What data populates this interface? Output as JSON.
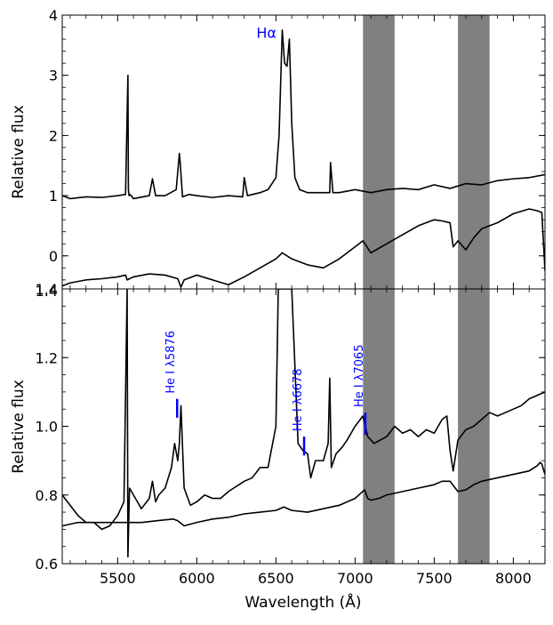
{
  "figure": {
    "xlabel": "Wavelength (Å)",
    "panels": [
      {
        "id": "top",
        "ylabel": "Relative flux",
        "xlim": [
          5150,
          8200
        ],
        "ylim": [
          -0.55,
          4.0
        ],
        "yticks": [
          0,
          1,
          2,
          3,
          4
        ],
        "ytick_labels": [
          "0",
          "1",
          "2",
          "3",
          "4"
        ],
        "annotations": [
          {
            "text": "Hα",
            "x": 6440,
            "y": 3.62,
            "color": "#0000ff"
          }
        ]
      },
      {
        "id": "bottom",
        "ylabel": "Relative flux",
        "xlim": [
          5150,
          8200
        ],
        "ylim": [
          0.6,
          1.4
        ],
        "yticks": [
          0.6,
          0.8,
          1.0,
          1.2,
          1.4
        ],
        "ytick_labels": [
          "0.6",
          "0.8",
          "1.0",
          "1.2",
          "1.4"
        ],
        "overlap_tick_label": "1.4",
        "lines": [
          {
            "label": "He I λ5876",
            "x": 5876,
            "y0": 1.025,
            "y1": 1.08
          },
          {
            "label": "He I λ6678",
            "x": 6678,
            "y0": 0.915,
            "y1": 0.97
          },
          {
            "label": "He I λ7065",
            "x": 7065,
            "y0": 0.975,
            "y1": 1.04
          }
        ]
      }
    ],
    "xticks": [
      5500,
      6000,
      6500,
      7000,
      7500,
      8000
    ],
    "xtick_labels": [
      "5500",
      "6000",
      "6500",
      "7000",
      "7500",
      "8000"
    ],
    "shaded_bands": [
      [
        7050,
        7250
      ],
      [
        7650,
        7850
      ]
    ],
    "colors": {
      "line": "#000000",
      "band": "#808080",
      "annotation": "#0000ff"
    }
  },
  "chart_data": [
    {
      "type": "line",
      "panel": "top",
      "title": "",
      "xlabel": "",
      "ylabel": "Relative flux",
      "xlim": [
        5150,
        8200
      ],
      "ylim": [
        -0.55,
        4.0
      ],
      "grid": false,
      "series": [
        {
          "x": [
            5150,
            5200,
            5300,
            5400,
            5500,
            5550,
            5565,
            5568,
            5572,
            5580,
            5600,
            5700,
            5720,
            5740,
            5800,
            5870,
            5890,
            5895,
            5910,
            5950,
            6000,
            6100,
            6200,
            6290,
            6300,
            6320,
            6400,
            6450,
            6500,
            6520,
            6540,
            6555,
            6570,
            6585,
            6600,
            6620,
            6650,
            6700,
            6800,
            6840,
            6845,
            6860,
            6900,
            7000,
            7100,
            7200,
            7300,
            7400,
            7500,
            7600,
            7700,
            7800,
            7900,
            8000,
            8100,
            8200
          ],
          "y": [
            1.0,
            0.95,
            0.98,
            0.97,
            1.0,
            1.02,
            3.0,
            1.1,
            1.0,
            1.02,
            0.95,
            1.0,
            1.28,
            1.0,
            1.0,
            1.1,
            1.7,
            1.55,
            0.98,
            1.02,
            1.0,
            0.97,
            1.0,
            0.98,
            1.3,
            1.0,
            1.05,
            1.1,
            1.3,
            2.0,
            3.75,
            3.2,
            3.15,
            3.6,
            2.2,
            1.3,
            1.1,
            1.05,
            1.05,
            1.05,
            1.55,
            1.05,
            1.05,
            1.1,
            1.05,
            1.1,
            1.12,
            1.1,
            1.18,
            1.12,
            1.2,
            1.18,
            1.25,
            1.28,
            1.3,
            1.35
          ]
        },
        {
          "x": [
            5150,
            5200,
            5300,
            5400,
            5500,
            5550,
            5560,
            5600,
            5700,
            5800,
            5880,
            5900,
            5920,
            6000,
            6100,
            6200,
            6300,
            6400,
            6500,
            6540,
            6600,
            6700,
            6800,
            6900,
            7000,
            7050,
            7100,
            7200,
            7300,
            7400,
            7500,
            7550,
            7600,
            7620,
            7650,
            7700,
            7750,
            7800,
            7900,
            8000,
            8100,
            8150,
            8180,
            8200
          ],
          "y": [
            -0.5,
            -0.45,
            -0.4,
            -0.38,
            -0.35,
            -0.32,
            -0.4,
            -0.35,
            -0.3,
            -0.32,
            -0.38,
            -0.52,
            -0.4,
            -0.32,
            -0.4,
            -0.48,
            -0.35,
            -0.2,
            -0.05,
            0.05,
            -0.05,
            -0.15,
            -0.2,
            -0.05,
            0.15,
            0.25,
            0.05,
            0.2,
            0.35,
            0.5,
            0.6,
            0.58,
            0.55,
            0.15,
            0.25,
            0.1,
            0.3,
            0.45,
            0.55,
            0.7,
            0.78,
            0.75,
            0.72,
            -0.25
          ]
        }
      ]
    },
    {
      "type": "line",
      "panel": "bottom",
      "title": "",
      "xlabel": "Wavelength (Å)",
      "ylabel": "Relative flux",
      "xlim": [
        5150,
        8200
      ],
      "ylim": [
        0.6,
        1.4
      ],
      "grid": false,
      "series": [
        {
          "x": [
            5150,
            5200,
            5250,
            5300,
            5350,
            5400,
            5450,
            5500,
            5540,
            5560,
            5565,
            5575,
            5600,
            5650,
            5700,
            5720,
            5740,
            5760,
            5800,
            5840,
            5860,
            5880,
            5890,
            5900,
            5920,
            5960,
            6000,
            6050,
            6100,
            6150,
            6200,
            6300,
            6350,
            6400,
            6450,
            6500,
            6515,
            6540,
            6560,
            6580,
            6600,
            6640,
            6670,
            6700,
            6720,
            6750,
            6800,
            6830,
            6840,
            6850,
            6880,
            6920,
            6950,
            7000,
            7050,
            7080,
            7120,
            7200,
            7250,
            7300,
            7350,
            7400,
            7450,
            7500,
            7550,
            7580,
            7600,
            7620,
            7650,
            7700,
            7750,
            7800,
            7850,
            7900,
            7950,
            8000,
            8050,
            8100,
            8150,
            8200
          ],
          "y": [
            0.8,
            0.77,
            0.74,
            0.72,
            0.72,
            0.7,
            0.71,
            0.74,
            0.78,
            1.4,
            0.62,
            0.82,
            0.8,
            0.76,
            0.79,
            0.84,
            0.78,
            0.8,
            0.82,
            0.88,
            0.95,
            0.9,
            0.95,
            1.06,
            0.82,
            0.77,
            0.78,
            0.8,
            0.79,
            0.79,
            0.81,
            0.84,
            0.85,
            0.88,
            0.88,
            1.0,
            1.4,
            1.4,
            1.4,
            1.4,
            1.4,
            0.95,
            0.93,
            0.92,
            0.85,
            0.9,
            0.9,
            0.95,
            1.14,
            0.88,
            0.92,
            0.94,
            0.96,
            1.0,
            1.03,
            0.97,
            0.95,
            0.97,
            1.0,
            0.98,
            0.99,
            0.97,
            0.99,
            0.98,
            1.02,
            1.03,
            0.93,
            0.87,
            0.96,
            0.99,
            1.0,
            1.02,
            1.04,
            1.03,
            1.04,
            1.05,
            1.06,
            1.08,
            1.09,
            1.1
          ]
        },
        {
          "x": [
            5150,
            5250,
            5350,
            5450,
            5550,
            5650,
            5750,
            5850,
            5880,
            5920,
            6000,
            6100,
            6200,
            6300,
            6400,
            6500,
            6550,
            6600,
            6700,
            6800,
            6900,
            7000,
            7060,
            7080,
            7100,
            7150,
            7200,
            7300,
            7400,
            7500,
            7550,
            7600,
            7650,
            7700,
            7750,
            7800,
            7900,
            8000,
            8100,
            8150,
            8170,
            8180,
            8200
          ],
          "y": [
            0.71,
            0.72,
            0.72,
            0.72,
            0.72,
            0.72,
            0.725,
            0.73,
            0.725,
            0.71,
            0.72,
            0.73,
            0.735,
            0.745,
            0.75,
            0.755,
            0.765,
            0.755,
            0.75,
            0.76,
            0.77,
            0.79,
            0.815,
            0.79,
            0.785,
            0.79,
            0.8,
            0.81,
            0.82,
            0.83,
            0.84,
            0.84,
            0.81,
            0.815,
            0.83,
            0.84,
            0.85,
            0.86,
            0.87,
            0.885,
            0.895,
            0.89,
            0.86
          ]
        }
      ]
    }
  ]
}
